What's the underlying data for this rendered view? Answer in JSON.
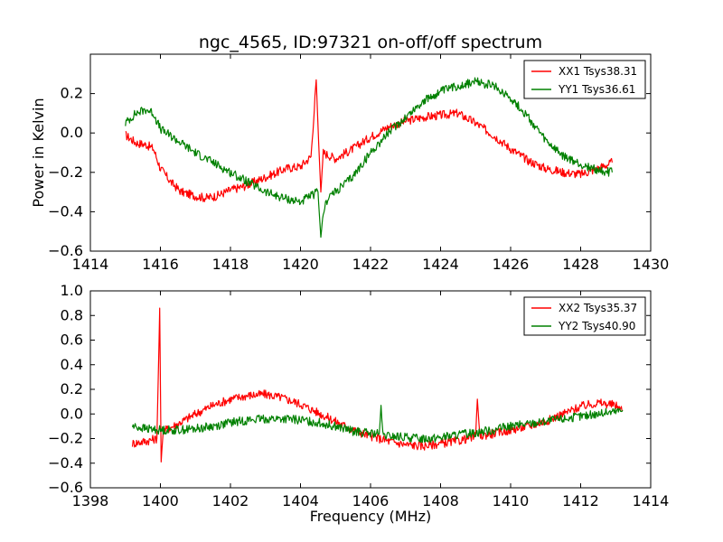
{
  "chart_data": [
    {
      "type": "line",
      "title": "ngc_4565, ID:97321 on-off/off spectrum",
      "xlabel": "",
      "ylabel": "Power in Kelvin",
      "xlim": [
        1414,
        1430
      ],
      "ylim": [
        -0.6,
        0.4
      ],
      "xticks": [
        "1414",
        "1416",
        "1418",
        "1420",
        "1422",
        "1424",
        "1426",
        "1428",
        "1430"
      ],
      "yticks": [
        "−0.6",
        "−0.4",
        "−0.2",
        "0.0",
        "0.2"
      ],
      "grid": false,
      "legend_position": "top-right",
      "series": [
        {
          "name": "XX1 Tsys38.31",
          "color": "#ff0000",
          "x": [
            1415.0,
            1415.3,
            1415.6,
            1415.8,
            1416.0,
            1416.3,
            1416.6,
            1417.0,
            1417.3,
            1417.6,
            1418.0,
            1418.4,
            1418.8,
            1419.2,
            1419.6,
            1420.0,
            1420.3,
            1420.45,
            1420.52,
            1420.58,
            1420.65,
            1421.0,
            1421.5,
            1422.0,
            1422.5,
            1423.0,
            1423.5,
            1424.0,
            1424.5,
            1425.0,
            1425.5,
            1426.0,
            1426.5,
            1427.0,
            1427.5,
            1428.0,
            1428.5,
            1428.9
          ],
          "y": [
            -0.01,
            -0.05,
            -0.06,
            -0.08,
            -0.18,
            -0.25,
            -0.3,
            -0.32,
            -0.33,
            -0.32,
            -0.29,
            -0.27,
            -0.24,
            -0.21,
            -0.18,
            -0.17,
            -0.12,
            0.27,
            -0.05,
            -0.3,
            -0.1,
            -0.13,
            -0.08,
            -0.02,
            0.03,
            0.06,
            0.08,
            0.09,
            0.1,
            0.05,
            -0.01,
            -0.08,
            -0.14,
            -0.18,
            -0.2,
            -0.21,
            -0.18,
            -0.15
          ]
        },
        {
          "name": "YY1 Tsys36.61",
          "color": "#008000",
          "x": [
            1415.0,
            1415.3,
            1415.6,
            1415.8,
            1416.0,
            1416.5,
            1417.0,
            1417.5,
            1418.0,
            1418.5,
            1419.0,
            1419.5,
            1420.0,
            1420.3,
            1420.5,
            1420.58,
            1420.65,
            1420.8,
            1421.0,
            1421.5,
            1422.0,
            1422.5,
            1423.0,
            1423.5,
            1424.0,
            1424.5,
            1425.0,
            1425.5,
            1426.0,
            1426.5,
            1427.0,
            1427.5,
            1428.0,
            1428.5,
            1428.9
          ],
          "y": [
            0.05,
            0.1,
            0.12,
            0.1,
            0.02,
            -0.04,
            -0.1,
            -0.15,
            -0.2,
            -0.25,
            -0.3,
            -0.33,
            -0.35,
            -0.32,
            -0.3,
            -0.53,
            -0.4,
            -0.32,
            -0.3,
            -0.22,
            -0.1,
            0.0,
            0.08,
            0.16,
            0.21,
            0.24,
            0.26,
            0.24,
            0.18,
            0.08,
            -0.04,
            -0.12,
            -0.16,
            -0.19,
            -0.2
          ]
        }
      ]
    },
    {
      "type": "line",
      "title": "",
      "xlabel": "Frequency (MHz)",
      "ylabel": "",
      "xlim": [
        1398,
        1414
      ],
      "ylim": [
        -0.6,
        1.0
      ],
      "xticks": [
        "1398",
        "1400",
        "1402",
        "1404",
        "1406",
        "1408",
        "1410",
        "1412",
        "1414"
      ],
      "yticks": [
        "−0.6",
        "−0.4",
        "−0.2",
        "0.0",
        "0.2",
        "0.4",
        "0.6",
        "0.8",
        "1.0"
      ],
      "grid": false,
      "legend_position": "top-right",
      "series": [
        {
          "name": "XX2 Tsys35.37",
          "color": "#ff0000",
          "x": [
            1399.2,
            1399.6,
            1399.9,
            1399.98,
            1400.02,
            1400.08,
            1400.5,
            1401.0,
            1401.5,
            1402.0,
            1402.5,
            1403.0,
            1403.5,
            1404.0,
            1404.5,
            1405.0,
            1405.5,
            1406.0,
            1406.5,
            1407.0,
            1407.5,
            1408.0,
            1408.5,
            1409.0,
            1409.05,
            1409.12,
            1409.5,
            1410.0,
            1410.5,
            1411.0,
            1411.5,
            1412.0,
            1412.5,
            1413.0,
            1413.2
          ],
          "y": [
            -0.24,
            -0.22,
            -0.2,
            0.86,
            -0.39,
            -0.14,
            -0.08,
            0.0,
            0.07,
            0.12,
            0.15,
            0.16,
            0.13,
            0.08,
            0.01,
            -0.06,
            -0.13,
            -0.18,
            -0.22,
            -0.25,
            -0.26,
            -0.24,
            -0.22,
            -0.18,
            0.12,
            -0.18,
            -0.16,
            -0.13,
            -0.1,
            -0.06,
            0.0,
            0.06,
            0.09,
            0.07,
            0.03
          ]
        },
        {
          "name": "YY2 Tsys40.90",
          "color": "#008000",
          "x": [
            1399.2,
            1399.6,
            1400.0,
            1400.5,
            1401.0,
            1401.5,
            1402.0,
            1402.5,
            1403.0,
            1403.5,
            1404.0,
            1404.5,
            1405.0,
            1405.5,
            1406.0,
            1406.25,
            1406.3,
            1406.35,
            1406.5,
            1407.0,
            1407.5,
            1408.0,
            1408.5,
            1409.0,
            1409.5,
            1410.0,
            1410.5,
            1411.0,
            1411.5,
            1412.0,
            1412.5,
            1413.0,
            1413.2
          ],
          "y": [
            -0.1,
            -0.12,
            -0.13,
            -0.13,
            -0.12,
            -0.1,
            -0.07,
            -0.05,
            -0.04,
            -0.04,
            -0.05,
            -0.07,
            -0.1,
            -0.14,
            -0.16,
            -0.16,
            0.07,
            -0.18,
            -0.18,
            -0.19,
            -0.2,
            -0.19,
            -0.17,
            -0.15,
            -0.13,
            -0.1,
            -0.08,
            -0.06,
            -0.04,
            -0.02,
            0.0,
            0.02,
            0.03
          ]
        }
      ]
    }
  ]
}
